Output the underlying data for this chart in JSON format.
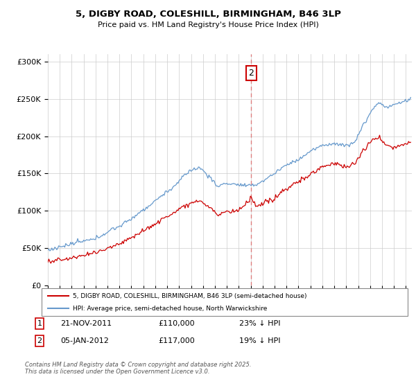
{
  "title_line1": "5, DIGBY ROAD, COLESHILL, BIRMINGHAM, B46 3LP",
  "title_line2": "Price paid vs. HM Land Registry's House Price Index (HPI)",
  "ylabel_hpi": "HPI: Average price, semi-detached house, North Warwickshire",
  "ylabel_price": "5, DIGBY ROAD, COLESHILL, BIRMINGHAM, B46 3LP (semi-detached house)",
  "hpi_color": "#6699cc",
  "price_color": "#cc0000",
  "vline_color": "#dd6666",
  "annotation_box_color": "#cc0000",
  "background_color": "#ffffff",
  "grid_color": "#cccccc",
  "ylim": [
    0,
    310000
  ],
  "yticks": [
    0,
    50000,
    100000,
    150000,
    200000,
    250000,
    300000
  ],
  "xlim_start": 1995.0,
  "xlim_end": 2025.5,
  "transaction2_date": 2012.04,
  "transaction2_label": "2",
  "transaction2_price": 117000,
  "footer": "Contains HM Land Registry data © Crown copyright and database right 2025.\nThis data is licensed under the Open Government Licence v3.0.",
  "xticks": [
    1995,
    1996,
    1997,
    1998,
    1999,
    2000,
    2001,
    2002,
    2003,
    2004,
    2005,
    2006,
    2007,
    2008,
    2009,
    2010,
    2011,
    2012,
    2013,
    2014,
    2015,
    2016,
    2017,
    2018,
    2019,
    2020,
    2021,
    2022,
    2023,
    2024,
    2025
  ]
}
